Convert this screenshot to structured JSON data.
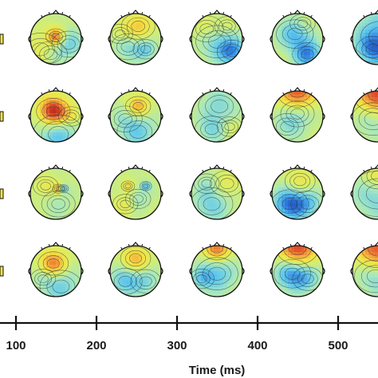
{
  "figure": {
    "rows": 4,
    "columns": 6,
    "colormap": [
      "#1f3fae",
      "#2f7fe0",
      "#5ec8ee",
      "#a6e7c0",
      "#d8ee6a",
      "#f4e243",
      "#f5a23a",
      "#e2512a",
      "#b01a16"
    ],
    "head_outline_color": "#111111",
    "contour_color": "#2a3a3a",
    "maps": [
      [
        {
          "blobs": [
            [
              0.5,
              0.45,
              0.12,
              1.0
            ],
            [
              0.2,
              0.7,
              0.25,
              0.3
            ],
            [
              0.75,
              0.6,
              0.2,
              -0.5
            ],
            [
              0.4,
              0.8,
              0.2,
              -0.2
            ]
          ]
        },
        {
          "blobs": [
            [
              0.55,
              0.25,
              0.2,
              0.6
            ],
            [
              0.35,
              0.65,
              0.2,
              -0.4
            ],
            [
              0.7,
              0.7,
              0.15,
              -0.5
            ],
            [
              0.2,
              0.4,
              0.15,
              0.2
            ]
          ]
        },
        {
          "blobs": [
            [
              0.5,
              0.55,
              0.25,
              -0.5
            ],
            [
              0.8,
              0.75,
              0.18,
              -0.8
            ],
            [
              0.3,
              0.3,
              0.2,
              0.3
            ],
            [
              0.7,
              0.25,
              0.15,
              0.2
            ]
          ]
        },
        {
          "blobs": [
            [
              0.45,
              0.4,
              0.22,
              -0.7
            ],
            [
              0.7,
              0.8,
              0.18,
              -0.9
            ],
            [
              0.6,
              0.2,
              0.15,
              0.2
            ]
          ]
        },
        {
          "blobs": [
            [
              0.55,
              0.45,
              0.35,
              -0.7
            ],
            [
              0.4,
              0.7,
              0.2,
              -0.6
            ]
          ]
        }
      ],
      [
        {
          "blobs": [
            [
              0.45,
              0.4,
              0.2,
              1.5
            ],
            [
              0.55,
              0.85,
              0.3,
              -0.6
            ],
            [
              0.8,
              0.5,
              0.15,
              0.4
            ]
          ]
        },
        {
          "blobs": [
            [
              0.55,
              0.3,
              0.15,
              0.8
            ],
            [
              0.55,
              0.8,
              0.25,
              -0.5
            ],
            [
              0.3,
              0.55,
              0.2,
              -0.2
            ]
          ]
        },
        {
          "blobs": [
            [
              0.55,
              0.3,
              0.25,
              -0.4
            ],
            [
              0.4,
              0.75,
              0.2,
              -0.4
            ],
            [
              0.75,
              0.7,
              0.15,
              0.2
            ]
          ]
        },
        {
          "blobs": [
            [
              0.5,
              0.0,
              0.25,
              1.2
            ],
            [
              0.5,
              0.45,
              0.2,
              -0.4
            ],
            [
              0.3,
              0.7,
              0.2,
              -0.3
            ]
          ]
        },
        {
          "blobs": [
            [
              0.5,
              0.05,
              0.3,
              1.3
            ],
            [
              0.4,
              0.55,
              0.25,
              -0.4
            ]
          ]
        }
      ],
      [
        {
          "blobs": [
            [
              0.55,
              0.4,
              0.07,
              0.7
            ],
            [
              0.65,
              0.4,
              0.06,
              -0.7
            ],
            [
              0.3,
              0.35,
              0.15,
              0.3
            ],
            [
              0.55,
              0.7,
              0.2,
              -0.2
            ]
          ]
        },
        {
          "blobs": [
            [
              0.35,
              0.35,
              0.08,
              0.5
            ],
            [
              0.7,
              0.35,
              0.07,
              -0.6
            ],
            [
              0.55,
              0.6,
              0.15,
              -0.3
            ],
            [
              0.3,
              0.7,
              0.15,
              0.3
            ]
          ]
        },
        {
          "blobs": [
            [
              0.4,
              0.7,
              0.25,
              -0.5
            ],
            [
              0.7,
              0.3,
              0.2,
              0.3
            ],
            [
              0.3,
              0.3,
              0.15,
              -0.2
            ]
          ]
        },
        {
          "blobs": [
            [
              0.35,
              0.7,
              0.22,
              -1.0
            ],
            [
              0.7,
              0.7,
              0.2,
              -0.5
            ],
            [
              0.55,
              0.25,
              0.18,
              0.4
            ]
          ]
        },
        {
          "blobs": [
            [
              0.5,
              0.5,
              0.35,
              -0.5
            ],
            [
              0.5,
              0.15,
              0.2,
              0.6
            ]
          ]
        }
      ],
      [
        {
          "blobs": [
            [
              0.45,
              0.35,
              0.18,
              1.0
            ],
            [
              0.6,
              0.8,
              0.25,
              -0.5
            ],
            [
              0.25,
              0.65,
              0.15,
              -0.2
            ]
          ]
        },
        {
          "blobs": [
            [
              0.5,
              0.25,
              0.18,
              0.7
            ],
            [
              0.3,
              0.7,
              0.2,
              -0.6
            ],
            [
              0.7,
              0.7,
              0.18,
              -0.4
            ]
          ]
        },
        {
          "blobs": [
            [
              0.5,
              0.05,
              0.18,
              1.1
            ],
            [
              0.5,
              0.55,
              0.25,
              -0.6
            ],
            [
              0.2,
              0.65,
              0.15,
              -0.4
            ]
          ]
        },
        {
          "blobs": [
            [
              0.5,
              0.05,
              0.25,
              1.3
            ],
            [
              0.4,
              0.55,
              0.22,
              -0.9
            ],
            [
              0.7,
              0.65,
              0.18,
              -0.4
            ]
          ]
        },
        {
          "blobs": [
            [
              0.5,
              0.05,
              0.3,
              1.2
            ],
            [
              0.45,
              0.6,
              0.25,
              -0.5
            ]
          ]
        }
      ]
    ]
  },
  "time_axis": {
    "title": "Time (ms)",
    "ticks": [
      {
        "label": "100"
      },
      {
        "label": "200"
      },
      {
        "label": "300"
      },
      {
        "label": "400"
      },
      {
        "label": "500"
      }
    ]
  }
}
